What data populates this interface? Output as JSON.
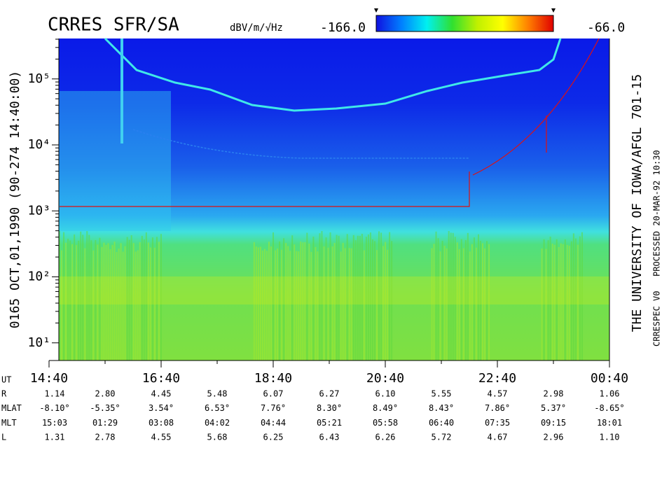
{
  "chart_data": {
    "type": "spectrogram",
    "title": "CRRES SFR/SA",
    "left_label": "0165 OCT,01,1990 (90-274 14:40:00)",
    "right_label": "THE UNIVERSITY OF IOWA/AFGL 701-15",
    "footnote": [
      "CRRESPEC V0",
      "PROCESSED 20-MAR-92 10:30"
    ],
    "colorbar": {
      "label": "dBV/m/√Hz",
      "clim": [
        -166,
        -66
      ],
      "ticks": [
        {
          "value": -166,
          "label": "-166.0"
        },
        {
          "value": -66,
          "label": "-66.0"
        }
      ],
      "colors": [
        "#1010e0",
        "#0080ff",
        "#00f0f0",
        "#30e030",
        "#c0f000",
        "#ffff00",
        "#ff8000",
        "#e00000"
      ]
    },
    "y_scale": "log",
    "ylim": [
      5.4,
      410000
    ],
    "yticks": [
      {
        "value": 10,
        "label": "10¹"
      },
      {
        "value": 100,
        "label": "10²"
      },
      {
        "value": 1000,
        "label": "10³"
      },
      {
        "value": 10000,
        "label": "10⁴"
      },
      {
        "value": 100000,
        "label": "10⁵"
      }
    ],
    "x_label": "UT",
    "categories": [
      "14:40",
      null,
      "16:40",
      null,
      "18:40",
      null,
      "20:40",
      null,
      "22:40",
      null,
      "00:40"
    ],
    "ephemeris": [
      {
        "name": "R",
        "values": [
          "1.14",
          "2.80",
          "4.45",
          "5.48",
          "6.07",
          "6.27",
          "6.10",
          "5.55",
          "4.57",
          "2.98",
          "1.06"
        ]
      },
      {
        "name": "MLAT",
        "values": [
          "-8.10°",
          "-5.35°",
          "3.54°",
          "6.53°",
          "7.76°",
          "8.30°",
          "8.49°",
          "8.43°",
          "7.86°",
          "5.37°",
          "-8.65°"
        ]
      },
      {
        "name": "MLT",
        "values": [
          "15:03",
          "01:29",
          "03:08",
          "04:02",
          "04:44",
          "05:21",
          "05:58",
          "06:40",
          "07:35",
          "09:15",
          "18:01"
        ]
      },
      {
        "name": "L",
        "values": [
          "1.31",
          "2.78",
          "4.55",
          "5.68",
          "6.25",
          "6.43",
          "6.26",
          "5.72",
          "4.67",
          "2.96",
          "1.10"
        ]
      }
    ]
  }
}
